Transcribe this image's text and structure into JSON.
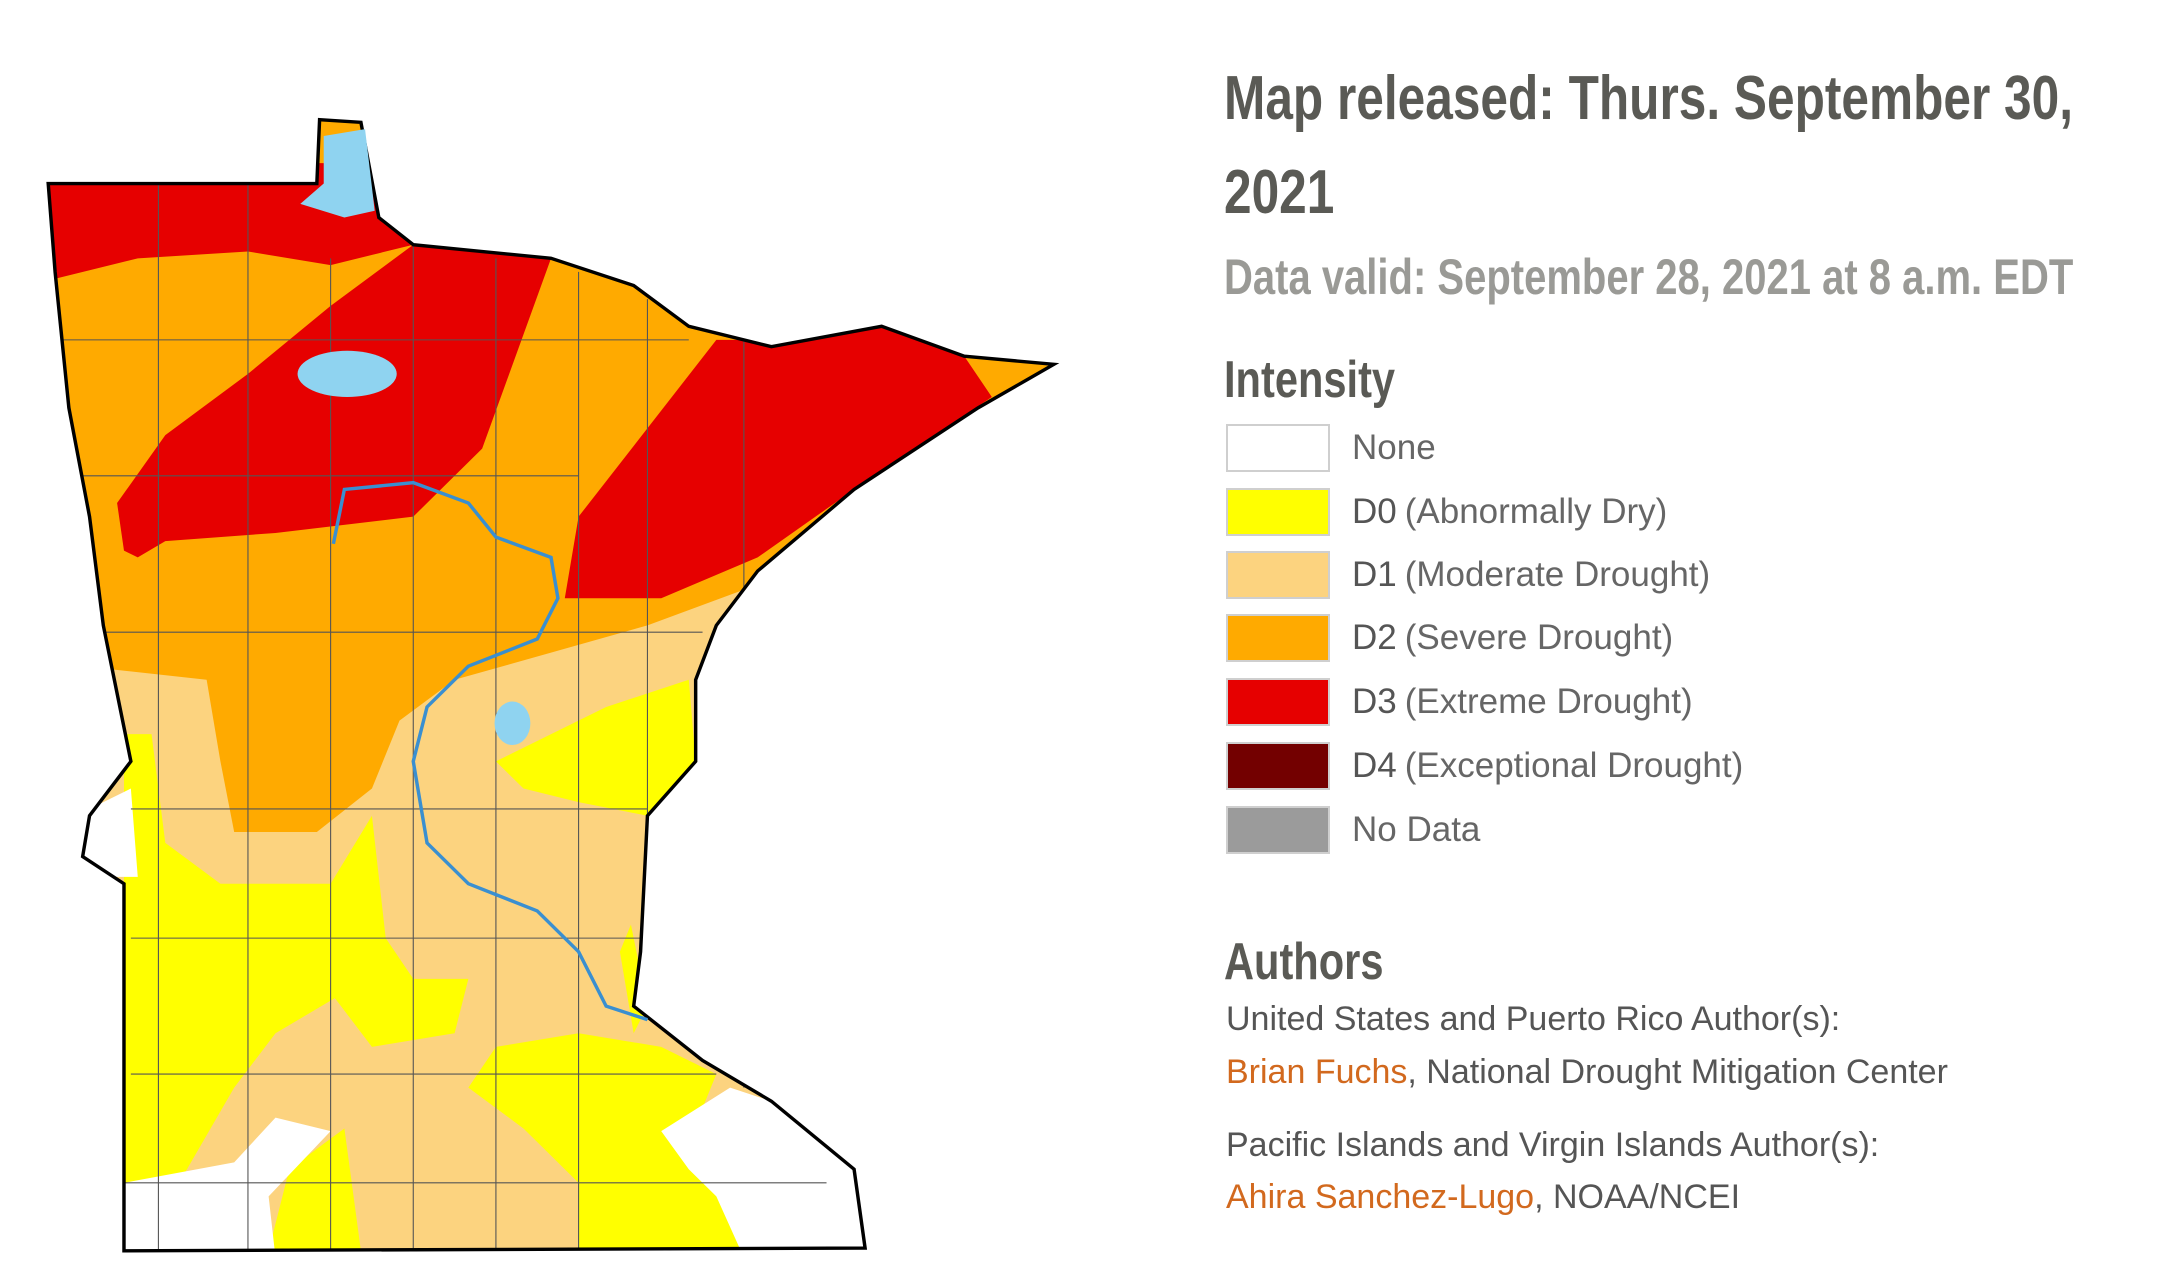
{
  "header": {
    "title": "Map released: Thurs. September 30, 2021",
    "subtitle": "Data valid: September 28, 2021 at 8 a.m. EDT"
  },
  "legend": {
    "title": "Intensity",
    "items": [
      {
        "label": "None",
        "color": "#ffffff"
      },
      {
        "code": "D0",
        "label": "(Abnormally Dry)",
        "color": "#ffff00"
      },
      {
        "code": "D1",
        "label": "(Moderate Drought)",
        "color": "#fcd37f"
      },
      {
        "code": "D2",
        "label": "(Severe Drought)",
        "color": "#ffaa00"
      },
      {
        "code": "D3",
        "label": "(Extreme Drought)",
        "color": "#e60000"
      },
      {
        "code": "D4",
        "label": "(Exceptional Drought)",
        "color": "#730000"
      },
      {
        "label": "No Data",
        "color": "#9b9b9b"
      }
    ]
  },
  "authors": {
    "title": "Authors",
    "groups": [
      {
        "heading": "United States and Puerto Rico Author(s):",
        "name": "Brian Fuchs",
        "affiliation": ", National Drought Mitigation Center"
      },
      {
        "heading": "Pacific Islands and Virgin Islands Author(s):",
        "name": "Ahira Sanchez-Lugo",
        "affiliation": ", NOAA/NCEI"
      }
    ]
  }
}
